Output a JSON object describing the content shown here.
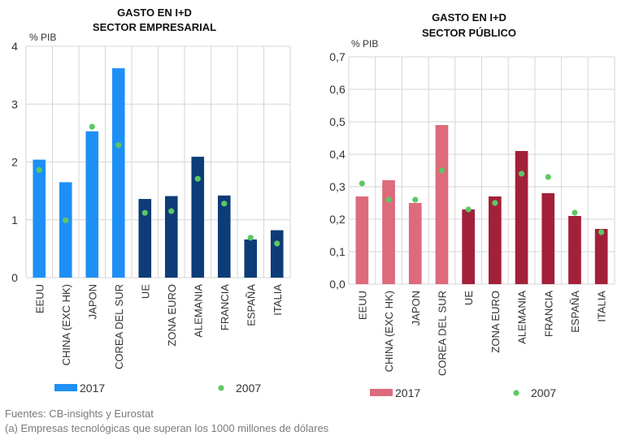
{
  "chart_data": [
    {
      "type": "bar",
      "title": [
        "GASTO EN I+D",
        "SECTOR EMPRESARIAL"
      ],
      "unit": "% PIB",
      "categories": [
        "EEUU",
        "CHINA (EXC HK)",
        "JAPON",
        "COREA DEL SUR",
        "UE",
        "ZONA EURO",
        "ALEMANIA",
        "FRANCIA",
        "ESPAÑA",
        "ITALIA"
      ],
      "series": [
        {
          "name": "2017",
          "kind": "bar",
          "values": [
            2.04,
            1.65,
            2.53,
            3.62,
            1.36,
            1.41,
            2.09,
            1.42,
            0.66,
            0.82
          ]
        },
        {
          "name": "2007",
          "kind": "dot",
          "values": [
            1.86,
            0.99,
            2.61,
            2.29,
            1.12,
            1.15,
            1.71,
            1.28,
            0.69,
            0.59
          ]
        }
      ],
      "bar_colors": [
        "#1e90f5",
        "#1e90f5",
        "#1e90f5",
        "#1e90f5",
        "#0d3c78",
        "#0d3c78",
        "#0d3c78",
        "#0d3c78",
        "#0d3c78",
        "#0d3c78"
      ],
      "legend_bar_color": "#1e90f5",
      "dot_color": "#5cc864",
      "ylim": [
        0,
        4
      ],
      "yticks": [
        "0",
        "1",
        "2",
        "3",
        "4"
      ],
      "grid": true,
      "legend_position": "bottom"
    },
    {
      "type": "bar",
      "title": [
        "GASTO EN I+D",
        "SECTOR PÚBLICO"
      ],
      "unit": "% PIB",
      "categories": [
        "EEUU",
        "CHINA (EXC HK)",
        "JAPON",
        "COREA DEL SUR",
        "UE",
        "ZONA EURO",
        "ALEMANIA",
        "FRANCIA",
        "ESPAÑA",
        "ITALIA"
      ],
      "series": [
        {
          "name": "2017",
          "kind": "bar",
          "values": [
            0.27,
            0.32,
            0.25,
            0.49,
            0.23,
            0.27,
            0.41,
            0.28,
            0.21,
            0.17
          ]
        },
        {
          "name": "2007",
          "kind": "dot",
          "values": [
            0.31,
            0.26,
            0.26,
            0.35,
            0.23,
            0.25,
            0.34,
            0.33,
            0.22,
            0.16
          ]
        }
      ],
      "bar_colors": [
        "#dd6b7b",
        "#dd6b7b",
        "#dd6b7b",
        "#dd6b7b",
        "#a3203a",
        "#a3203a",
        "#a3203a",
        "#a3203a",
        "#a3203a",
        "#a3203a"
      ],
      "legend_bar_color": "#dd6b7b",
      "dot_color": "#5cc864",
      "ylim": [
        0,
        0.7
      ],
      "yticks": [
        "0,0",
        "0,1",
        "0,2",
        "0,3",
        "0,4",
        "0,5",
        "0,6",
        "0,7"
      ],
      "grid": true,
      "legend_position": "bottom"
    }
  ],
  "footer": {
    "sources": "Fuentes: CB-insights y Eurostat",
    "note": "(a) Empresas tecnológicas que superan los 1000 millones de dólares"
  }
}
